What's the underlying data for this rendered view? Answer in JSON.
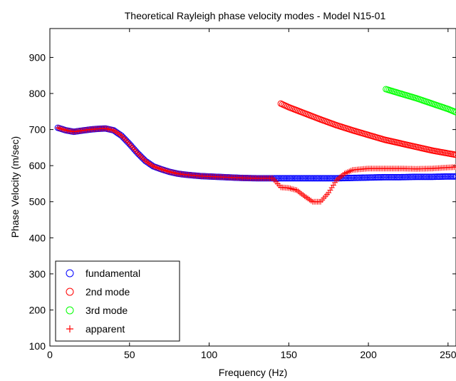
{
  "chart_data": {
    "type": "scatter",
    "title": "Theoretical Rayleigh phase velocity modes - Model N15-01",
    "xlabel": "Frequency (Hz)",
    "ylabel": "Phase Velocity (m/sec)",
    "xlim": [
      0,
      255
    ],
    "ylim": [
      100,
      980
    ],
    "xticks": [
      0,
      50,
      100,
      150,
      200,
      250
    ],
    "yticks": [
      100,
      200,
      300,
      400,
      500,
      600,
      700,
      800,
      900
    ],
    "legend_position": "bottom-left",
    "colors": {
      "fundamental": "#0000ff",
      "2nd": "#ff0000",
      "3rd": "#00ff00",
      "apparent": "#ff0000"
    },
    "series": [
      {
        "name": "fundamental",
        "marker": "circle",
        "color": "#0000ff",
        "points": [
          [
            5,
            705
          ],
          [
            10,
            698
          ],
          [
            15,
            694
          ],
          [
            20,
            697
          ],
          [
            25,
            700
          ],
          [
            30,
            702
          ],
          [
            35,
            703
          ],
          [
            40,
            698
          ],
          [
            45,
            683
          ],
          [
            50,
            660
          ],
          [
            55,
            635
          ],
          [
            60,
            613
          ],
          [
            65,
            598
          ],
          [
            70,
            590
          ],
          [
            75,
            583
          ],
          [
            80,
            578
          ],
          [
            85,
            575
          ],
          [
            90,
            573
          ],
          [
            95,
            571
          ],
          [
            100,
            570
          ],
          [
            110,
            568
          ],
          [
            120,
            566
          ],
          [
            130,
            565
          ],
          [
            140,
            565
          ],
          [
            150,
            565
          ],
          [
            160,
            565
          ],
          [
            170,
            565
          ],
          [
            180,
            565
          ],
          [
            190,
            566
          ],
          [
            200,
            567
          ],
          [
            210,
            568
          ],
          [
            220,
            568
          ],
          [
            230,
            569
          ],
          [
            240,
            569
          ],
          [
            250,
            570
          ],
          [
            255,
            570
          ]
        ]
      },
      {
        "name": "2nd mode",
        "marker": "circle",
        "color": "#ff0000",
        "points": [
          [
            145,
            772
          ],
          [
            150,
            762
          ],
          [
            160,
            745
          ],
          [
            170,
            728
          ],
          [
            180,
            712
          ],
          [
            190,
            698
          ],
          [
            200,
            685
          ],
          [
            210,
            672
          ],
          [
            220,
            662
          ],
          [
            230,
            652
          ],
          [
            240,
            642
          ],
          [
            250,
            634
          ],
          [
            255,
            630
          ]
        ]
      },
      {
        "name": "3rd mode",
        "marker": "circle",
        "color": "#00ff00",
        "points": [
          [
            211,
            812
          ],
          [
            220,
            800
          ],
          [
            230,
            787
          ],
          [
            240,
            772
          ],
          [
            250,
            757
          ],
          [
            255,
            748
          ]
        ]
      },
      {
        "name": "apparent",
        "marker": "plus",
        "color": "#ff0000",
        "points": [
          [
            5,
            705
          ],
          [
            10,
            698
          ],
          [
            15,
            694
          ],
          [
            20,
            697
          ],
          [
            25,
            700
          ],
          [
            30,
            702
          ],
          [
            35,
            703
          ],
          [
            40,
            698
          ],
          [
            45,
            683
          ],
          [
            50,
            660
          ],
          [
            55,
            635
          ],
          [
            60,
            613
          ],
          [
            65,
            598
          ],
          [
            70,
            590
          ],
          [
            75,
            583
          ],
          [
            80,
            578
          ],
          [
            85,
            575
          ],
          [
            90,
            573
          ],
          [
            95,
            571
          ],
          [
            100,
            570
          ],
          [
            110,
            568
          ],
          [
            120,
            566
          ],
          [
            130,
            565
          ],
          [
            140,
            565
          ],
          [
            145,
            540
          ],
          [
            150,
            538
          ],
          [
            155,
            532
          ],
          [
            160,
            515
          ],
          [
            165,
            500
          ],
          [
            170,
            500
          ],
          [
            175,
            525
          ],
          [
            180,
            560
          ],
          [
            185,
            578
          ],
          [
            190,
            588
          ],
          [
            195,
            590
          ],
          [
            200,
            592
          ],
          [
            210,
            592
          ],
          [
            220,
            592
          ],
          [
            230,
            591
          ],
          [
            240,
            592
          ],
          [
            250,
            595
          ],
          [
            255,
            596
          ]
        ]
      }
    ]
  }
}
